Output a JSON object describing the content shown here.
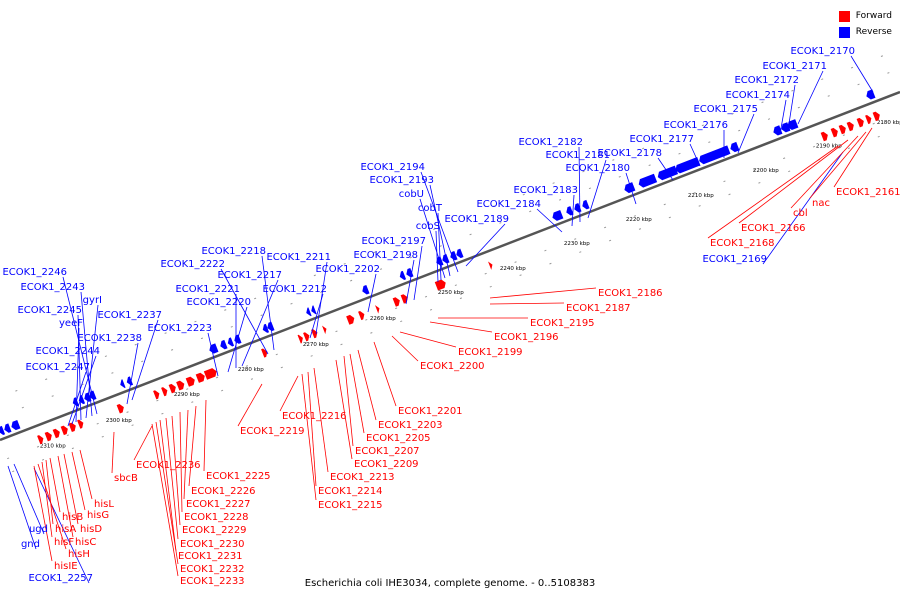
{
  "legend": [
    {
      "label": "Forward",
      "color": "#ff0000"
    },
    {
      "label": "Reverse",
      "color": "#0000ff"
    }
  ],
  "caption": "Escherichia coli IHE3034, complete genome. - 0..5108383",
  "colors": {
    "forward": "#ff0000",
    "reverse": "#0000ff",
    "backbone": "#555555"
  },
  "kbp_ticks": [
    "2180 kbp",
    "2190 kbp",
    "2200 kbp",
    "2210 kbp",
    "2220 kbp",
    "2230 kbp",
    "2240 kbp",
    "2250 kbp",
    "2260 kbp",
    "2270 kbp",
    "2280 kbp",
    "2290 kbp",
    "2300 kbp",
    "2310 kbp"
  ],
  "reverse_labels": [
    "ECOK1_2170",
    "ECOK1_2171",
    "ECOK1_2172",
    "ECOK1_2174",
    "ECOK1_2175",
    "ECOK1_2176",
    "ECOK1_2177",
    "ECOK1_2178",
    "ECOK1_2180",
    "ECOK1_2181",
    "ECOK1_2182",
    "ECOK1_2183",
    "ECOK1_2184",
    "ECOK1_2189",
    "ECOK1_2194",
    "ECOK1_2193",
    "cobU",
    "cobT",
    "cobS",
    "ECOK1_2197",
    "ECOK1_2198",
    "ECOK1_2202",
    "ECOK1_2211",
    "ECOK1_2212",
    "ECOK1_2218",
    "ECOK1_2222",
    "ECOK1_2217",
    "ECOK1_2221",
    "ECOK1_2220",
    "ECOK1_2223",
    "ECOK1_2237",
    "ECOK1_2238",
    "ECOK1_2246",
    "ECOK1_2243",
    "gyrI",
    "ECOK1_2245",
    "yeeF",
    "ECOK1_2244",
    "ECOK1_2247",
    "ECOK1_2169",
    "ugd",
    "gnd",
    "ECOK1_2257"
  ],
  "forward_labels": [
    "ECOK1_2161",
    "nac",
    "cbl",
    "ECOK1_2166",
    "ECOK1_2168",
    "ECOK1_2186",
    "ECOK1_2187",
    "ECOK1_2195",
    "ECOK1_2196",
    "ECOK1_2199",
    "ECOK1_2200",
    "ECOK1_2201",
    "ECOK1_2203",
    "ECOK1_2205",
    "ECOK1_2207",
    "ECOK1_2209",
    "ECOK1_2213",
    "ECOK1_2214",
    "ECOK1_2215",
    "ECOK1_2216",
    "ECOK1_2219",
    "ECOK1_2225",
    "ECOK1_2226",
    "ECOK1_2227",
    "ECOK1_2228",
    "ECOK1_2229",
    "ECOK1_2230",
    "ECOK1_2231",
    "ECOK1_2232",
    "ECOK1_2233",
    "ECOK1_2236",
    "sbcB",
    "hisL",
    "hisG",
    "hisD",
    "hisC",
    "hisB",
    "hisA",
    "hisF",
    "hisH",
    "hisIE"
  ]
}
